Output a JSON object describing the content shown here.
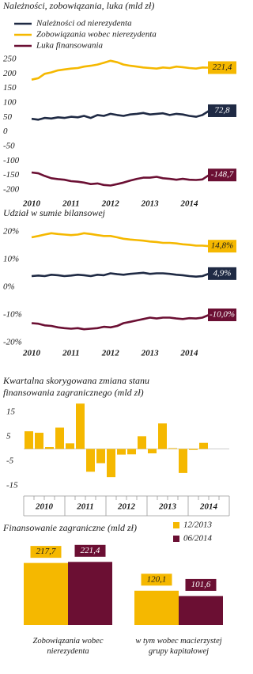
{
  "chart_data": [
    {
      "type": "line",
      "title": "Należności, zobowiązania, luka (mld zł)",
      "x": [
        2010,
        2010.17,
        2010.33,
        2010.5,
        2010.67,
        2010.83,
        2011,
        2011.17,
        2011.33,
        2011.5,
        2011.67,
        2011.83,
        2012,
        2012.17,
        2012.33,
        2012.5,
        2012.67,
        2012.83,
        2013,
        2013.17,
        2013.33,
        2013.5,
        2013.67,
        2013.83,
        2014,
        2014.17,
        2014.33,
        2014.5
      ],
      "xlim": [
        2009.9,
        2014.45
      ],
      "xticks": [
        2010,
        2011,
        2012,
        2013,
        2014
      ],
      "ylim": [
        -200,
        250
      ],
      "yticks": [
        250,
        200,
        150,
        100,
        50,
        0,
        -50,
        -100,
        -150,
        -200
      ],
      "series": [
        {
          "name": "Należności od nierezydenta",
          "color": "#1f2a44",
          "values": [
            45,
            42,
            48,
            46,
            50,
            48,
            52,
            50,
            55,
            48,
            58,
            55,
            62,
            58,
            55,
            60,
            62,
            65,
            60,
            62,
            64,
            58,
            62,
            60,
            55,
            52,
            58,
            72.8
          ],
          "value_labels": [
            null,
            null,
            null,
            null,
            null,
            null,
            null,
            null,
            null,
            null,
            null,
            null,
            null,
            null,
            null,
            null,
            null,
            null,
            null,
            null,
            null,
            null,
            null,
            null,
            null,
            null,
            null,
            "72,8"
          ]
        },
        {
          "name": "Zobowiązania wobec nierezydenta",
          "color": "#f5b800",
          "values": [
            180,
            185,
            200,
            205,
            212,
            215,
            218,
            220,
            225,
            228,
            232,
            238,
            245,
            240,
            232,
            228,
            225,
            222,
            220,
            218,
            222,
            220,
            225,
            223,
            220,
            218,
            222,
            221.4
          ],
          "value_labels": [
            null,
            null,
            null,
            null,
            null,
            null,
            null,
            null,
            null,
            null,
            null,
            null,
            null,
            null,
            null,
            null,
            null,
            null,
            null,
            null,
            null,
            null,
            null,
            null,
            null,
            null,
            null,
            "221,4"
          ]
        },
        {
          "name": "Luka finansowania",
          "color": "#6b0f33",
          "values": [
            -140,
            -143,
            -152,
            -160,
            -163,
            -165,
            -170,
            -172,
            -175,
            -180,
            -178,
            -183,
            -185,
            -180,
            -175,
            -168,
            -162,
            -158,
            -158,
            -155,
            -160,
            -162,
            -165,
            -162,
            -165,
            -166,
            -164,
            -148.7
          ],
          "value_labels": [
            null,
            null,
            null,
            null,
            null,
            null,
            null,
            null,
            null,
            null,
            null,
            null,
            null,
            null,
            null,
            null,
            null,
            null,
            null,
            null,
            null,
            null,
            null,
            null,
            null,
            null,
            null,
            "-148,7"
          ]
        }
      ]
    },
    {
      "type": "line",
      "title": "Udział w sumie bilansowej",
      "x": [
        2010,
        2010.17,
        2010.33,
        2010.5,
        2010.67,
        2010.83,
        2011,
        2011.17,
        2011.33,
        2011.5,
        2011.67,
        2011.83,
        2012,
        2012.17,
        2012.33,
        2012.5,
        2012.67,
        2012.83,
        2013,
        2013.17,
        2013.33,
        2013.5,
        2013.67,
        2013.83,
        2014,
        2014.17,
        2014.33,
        2014.5
      ],
      "xlim": [
        2009.9,
        2014.45
      ],
      "xticks": [
        2010,
        2011,
        2012,
        2013,
        2014
      ],
      "ylim": [
        -20,
        20
      ],
      "yticks": [
        {
          "value": 20,
          "label": "20%"
        },
        {
          "value": 10,
          "label": "10%"
        },
        {
          "value": 0,
          "label": "0%"
        },
        {
          "value": -10,
          "label": "-10%"
        },
        {
          "value": -20,
          "label": "-20%"
        }
      ],
      "series": [
        {
          "color": "#f5b800",
          "values": [
            18,
            18.5,
            19,
            19.5,
            19.2,
            19,
            18.8,
            19,
            19.5,
            19.2,
            18.8,
            18.5,
            18.5,
            18,
            17.5,
            17.2,
            17,
            16.8,
            16.5,
            16.3,
            16,
            16,
            15.8,
            15.5,
            15.3,
            15,
            15,
            14.8
          ],
          "value_labels": [
            null,
            null,
            null,
            null,
            null,
            null,
            null,
            null,
            null,
            null,
            null,
            null,
            null,
            null,
            null,
            null,
            null,
            null,
            null,
            null,
            null,
            null,
            null,
            null,
            null,
            null,
            null,
            "14,8%"
          ]
        },
        {
          "color": "#1f2a44",
          "values": [
            4,
            4.2,
            4,
            4.5,
            4.3,
            4,
            4.2,
            4.5,
            4.3,
            4,
            4.5,
            4.3,
            5,
            4.7,
            4.5,
            4.8,
            5,
            5.2,
            4.8,
            5,
            5,
            4.8,
            4.5,
            4.3,
            4,
            3.8,
            4,
            4.9
          ],
          "value_labels": [
            null,
            null,
            null,
            null,
            null,
            null,
            null,
            null,
            null,
            null,
            null,
            null,
            null,
            null,
            null,
            null,
            null,
            null,
            null,
            null,
            null,
            null,
            null,
            null,
            null,
            null,
            null,
            "4,9%"
          ]
        },
        {
          "color": "#6b0f33",
          "values": [
            -13,
            -13.2,
            -13.8,
            -14,
            -14.5,
            -14.8,
            -15,
            -14.8,
            -15.2,
            -15,
            -14.8,
            -14.3,
            -14.5,
            -14,
            -13,
            -12.5,
            -12,
            -11.5,
            -11,
            -11.3,
            -11,
            -11,
            -11.3,
            -11.5,
            -11.2,
            -11.3,
            -11,
            -10
          ],
          "value_labels": [
            null,
            null,
            null,
            null,
            null,
            null,
            null,
            null,
            null,
            null,
            null,
            null,
            null,
            null,
            null,
            null,
            null,
            null,
            null,
            null,
            null,
            null,
            null,
            null,
            null,
            null,
            null,
            "-10,0%"
          ]
        }
      ]
    },
    {
      "type": "bar",
      "title": "Kwartalna skorygowana zmiana stanu finansowania zagranicznego (mld zł)",
      "categories": [
        null,
        null,
        null,
        null,
        null,
        null,
        null,
        null,
        null,
        null,
        null,
        null,
        null,
        null,
        null,
        null,
        null,
        null,
        null,
        null
      ],
      "values": [
        7.2,
        6.6,
        0.8,
        8.7,
        2.3,
        18.5,
        -9.3,
        -5.8,
        -11.5,
        -2.3,
        -2.2,
        5.2,
        -1.8,
        10.4,
        0.3,
        -9.8,
        -0.4,
        2.5,
        null,
        null
      ],
      "x_groups": [
        "2010",
        "2011",
        "2012",
        "2013",
        "2014"
      ],
      "color": "#f5b800",
      "ylim": [
        -15,
        15
      ],
      "yticks": [
        15,
        5,
        -5,
        -15
      ]
    },
    {
      "type": "bar",
      "title": "Finansowanie zagraniczne (mld zł)",
      "categories": [
        "Zobowiązania wobec nierezydenta",
        "w tym wobec macierzystej grupy kapitałowej"
      ],
      "series": [
        {
          "name": "12/2013",
          "color": "#f5b800",
          "values": [
            217.7,
            120.1
          ],
          "value_labels": [
            "217,7",
            "120,1"
          ]
        },
        {
          "name": "06/2014",
          "color": "#6b0f33",
          "values": [
            221.4,
            101.6
          ],
          "value_labels": [
            "221,4",
            "101,6"
          ]
        }
      ]
    }
  ]
}
